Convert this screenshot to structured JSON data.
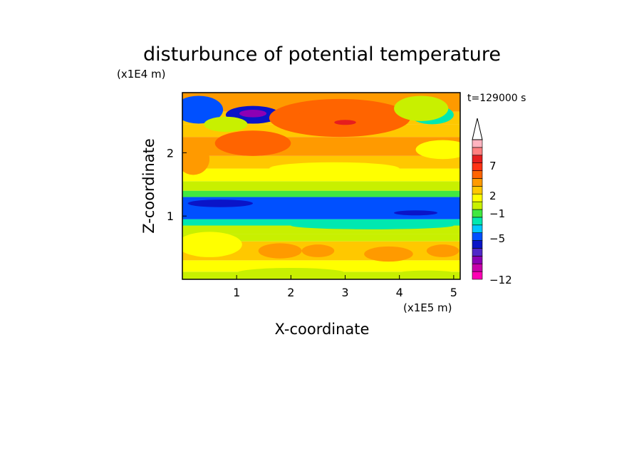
{
  "chart_data": {
    "type": "heatmap",
    "title": "disturbunce of potential temperature",
    "xlabel": "X-coordinate",
    "ylabel": "Z-coordinate",
    "x_unit": "(x1E5 m)",
    "y_unit": "(x1E4 m)",
    "time_label": "t=129000 s",
    "xlim": [
      0,
      5.12
    ],
    "ylim": [
      0,
      2.95
    ],
    "xticks": [
      "1",
      "2",
      "3",
      "4",
      "5"
    ],
    "yticks": [
      "1",
      "2"
    ],
    "colorbar": {
      "tick_labels": [
        "7",
        "2",
        "-1",
        "-5",
        "-12"
      ],
      "colors": [
        "#ff00b4",
        "#c800aa",
        "#8c00b4",
        "#5028c8",
        "#0a14c8",
        "#0050ff",
        "#00c8ff",
        "#00e8b0",
        "#40e840",
        "#c8f000",
        "#ffff00",
        "#ffc800",
        "#ff9a00",
        "#ff6400",
        "#ff3214",
        "#e61e1e",
        "#ff8080",
        "#ffb4c0"
      ],
      "extend": "max"
    },
    "field_bands": [
      {
        "z": [
          0.0,
          0.12
        ],
        "value": 0.2
      },
      {
        "z": [
          0.12,
          0.3
        ],
        "value": 1.0
      },
      {
        "z": [
          0.3,
          0.6
        ],
        "value": 2.0
      },
      {
        "z": [
          0.6,
          0.72
        ],
        "value": 0.2
      },
      {
        "z": [
          0.72,
          0.85
        ],
        "value": -0.8
      },
      {
        "z": [
          0.85,
          0.95
        ],
        "value": -2.5
      },
      {
        "z": [
          0.95,
          1.3
        ],
        "value": -5.0
      },
      {
        "z": [
          1.3,
          1.4
        ],
        "value": -2.0
      },
      {
        "z": [
          1.4,
          1.55
        ],
        "value": -0.5
      },
      {
        "z": [
          1.55,
          1.75
        ],
        "value": 0.5
      },
      {
        "z": [
          1.75,
          1.95
        ],
        "value": 1.5
      },
      {
        "z": [
          1.95,
          2.25
        ],
        "value": 3.0
      },
      {
        "z": [
          2.25,
          2.45
        ],
        "value": 1.5
      },
      {
        "z": [
          2.45,
          2.65
        ],
        "value": 2.5
      },
      {
        "z": [
          2.65,
          2.95
        ],
        "value": 3.5
      }
    ],
    "field_features": [
      {
        "x": 0.3,
        "z": 2.68,
        "rx": 0.45,
        "rz": 0.22,
        "value": -5.0
      },
      {
        "x": 1.3,
        "z": 2.6,
        "rx": 0.5,
        "rz": 0.14,
        "value": -7.0
      },
      {
        "x": 1.3,
        "z": 2.62,
        "rx": 0.25,
        "rz": 0.06,
        "value": -9.0
      },
      {
        "x": 0.8,
        "z": 2.45,
        "rx": 0.4,
        "rz": 0.12,
        "value": -1.0
      },
      {
        "x": 2.9,
        "z": 2.55,
        "rx": 1.3,
        "rz": 0.3,
        "value": 4.0
      },
      {
        "x": 2.9,
        "z": 2.55,
        "rx": 0.8,
        "rz": 0.18,
        "value": 5.0
      },
      {
        "x": 3.0,
        "z": 2.48,
        "rx": 0.2,
        "rz": 0.04,
        "value": 7.5
      },
      {
        "x": 4.6,
        "z": 2.6,
        "rx": 0.4,
        "rz": 0.15,
        "value": -3.0
      },
      {
        "x": 4.4,
        "z": 2.7,
        "rx": 0.5,
        "rz": 0.2,
        "value": -0.5
      },
      {
        "x": 1.3,
        "z": 2.15,
        "rx": 0.7,
        "rz": 0.2,
        "value": 4.0
      },
      {
        "x": 0.2,
        "z": 1.9,
        "rx": 0.3,
        "rz": 0.25,
        "value": 3.0
      },
      {
        "x": 2.8,
        "z": 1.75,
        "rx": 1.2,
        "rz": 0.1,
        "value": 1.0
      },
      {
        "x": 4.8,
        "z": 2.05,
        "rx": 0.5,
        "rz": 0.15,
        "value": 1.0
      },
      {
        "x": 4.3,
        "z": 1.05,
        "rx": 0.4,
        "rz": 0.04,
        "value": -6.5
      },
      {
        "x": 0.7,
        "z": 1.2,
        "rx": 0.6,
        "rz": 0.06,
        "value": -6.5
      },
      {
        "x": 3.5,
        "z": 0.85,
        "rx": 1.5,
        "rz": 0.06,
        "value": -2.5
      },
      {
        "x": 0.5,
        "z": 0.55,
        "rx": 0.6,
        "rz": 0.2,
        "value": 0.5
      },
      {
        "x": 1.8,
        "z": 0.45,
        "rx": 0.4,
        "rz": 0.12,
        "value": 3.0
      },
      {
        "x": 2.5,
        "z": 0.45,
        "rx": 0.3,
        "rz": 0.1,
        "value": 3.0
      },
      {
        "x": 3.8,
        "z": 0.4,
        "rx": 0.45,
        "rz": 0.12,
        "value": 3.0
      },
      {
        "x": 4.8,
        "z": 0.45,
        "rx": 0.3,
        "rz": 0.1,
        "value": 3.0
      },
      {
        "x": 2.0,
        "z": 0.1,
        "rx": 1.0,
        "rz": 0.08,
        "value": -1.0
      },
      {
        "x": 4.5,
        "z": 0.08,
        "rx": 0.6,
        "rz": 0.06,
        "value": -0.5
      }
    ]
  }
}
